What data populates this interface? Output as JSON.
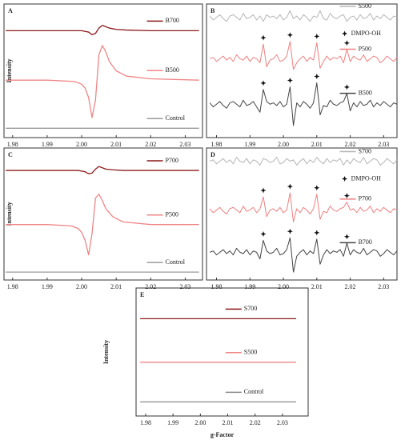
{
  "chart_data": [
    {
      "type": "line",
      "title": "A",
      "ylabel": "Intensity",
      "x": [
        1.978,
        1.99,
        1.998,
        2.0,
        2.001,
        2.002,
        2.003,
        2.004,
        2.005,
        2.006,
        2.007,
        2.008,
        2.01,
        2.013,
        2.02,
        2.034
      ],
      "series": [
        {
          "name": "B700",
          "color": "#8b1a1a",
          "values": [
            80,
            80,
            80,
            80,
            79.5,
            79,
            77,
            78,
            82,
            84,
            83,
            82,
            81,
            80.5,
            80,
            80
          ]
        },
        {
          "name": "B500",
          "color": "#ef8585",
          "values": [
            43,
            43,
            42,
            40,
            37,
            30,
            15,
            28,
            62,
            69,
            64,
            57,
            50,
            46,
            44,
            43
          ]
        },
        {
          "name": "Control",
          "color": "#9a9a9a",
          "values": [
            7,
            7,
            7,
            7,
            7,
            7,
            7,
            7,
            7,
            7,
            7,
            7,
            7,
            7,
            7,
            7
          ]
        }
      ],
      "xlim": [
        1.9775,
        2.035
      ],
      "ylim": [
        0,
        100
      ],
      "xticks": [
        1.98,
        1.99,
        {
          "value": 2,
          "label": "2.00"
        },
        2.01,
        2.02,
        2.03
      ]
    },
    {
      "type": "line",
      "title": "B",
      "annotation": "DMPO-OH",
      "x": [
        1.978,
        1.979,
        1.98,
        1.981,
        1.982,
        1.983,
        1.984,
        1.985,
        1.986,
        1.987,
        1.988,
        1.989,
        1.99,
        1.991,
        1.992,
        1.993,
        1.994,
        1.995,
        1.996,
        1.997,
        1.998,
        1.999,
        2.0,
        2.001,
        2.002,
        2.003,
        2.004,
        2.005,
        2.006,
        2.007,
        2.008,
        2.009,
        2.01,
        2.011,
        2.012,
        2.013,
        2.014,
        2.015,
        2.016,
        2.017,
        2.018,
        2.019,
        2.02,
        2.021,
        2.022,
        2.023,
        2.024,
        2.025,
        2.026,
        2.027,
        2.028,
        2.029,
        2.03,
        2.031,
        2.032,
        2.033,
        2.034
      ],
      "series": [
        {
          "name": "S500",
          "color": "#b5b5b5",
          "values": [
            91,
            88,
            90,
            92,
            89,
            87,
            91,
            92,
            90,
            88,
            93,
            89,
            90,
            92,
            88,
            91,
            87,
            92,
            90,
            91,
            89,
            92,
            88,
            90,
            95,
            89,
            91,
            88,
            92,
            90,
            87,
            91,
            90,
            95,
            89,
            88,
            93,
            90,
            89,
            91,
            92,
            87,
            90,
            91,
            88,
            92,
            89,
            90,
            93,
            88,
            91,
            89,
            92,
            90,
            88,
            91,
            90
          ]
        },
        {
          "name": "P500",
          "color": "#ef8080",
          "values": [
            59,
            60,
            57,
            59,
            61,
            58,
            60,
            57,
            62,
            59,
            58,
            61,
            57,
            60,
            59,
            56,
            70,
            53,
            58,
            59,
            62,
            57,
            58,
            61,
            72,
            51,
            56,
            59,
            61,
            57,
            60,
            58,
            71,
            52,
            57,
            61,
            58,
            60,
            59,
            61,
            56,
            66,
            57,
            61,
            59,
            58,
            62,
            57,
            59,
            61,
            60,
            56,
            58,
            61,
            59,
            57,
            60
          ]
        },
        {
          "name": "B500",
          "color": "#444444",
          "values": [
            26,
            23,
            25,
            27,
            24,
            22,
            26,
            27,
            25,
            23,
            28,
            24,
            25,
            27,
            23,
            19,
            36,
            27,
            25,
            26,
            24,
            27,
            23,
            25,
            38,
            9,
            26,
            23,
            27,
            25,
            22,
            26,
            41,
            17,
            24,
            23,
            28,
            25,
            24,
            26,
            27,
            33,
            20,
            26,
            23,
            27,
            24,
            25,
            28,
            23,
            26,
            24,
            27,
            25,
            23,
            26,
            25
          ]
        }
      ],
      "xlim": [
        1.977,
        2.034
      ],
      "ylim": [
        0,
        100
      ],
      "xticks": [
        1.98,
        1.99,
        {
          "value": 2,
          "label": "2.00"
        },
        2.01,
        2.02,
        2.03
      ]
    },
    {
      "type": "line",
      "title": "C",
      "ylabel": "Intensity",
      "x": [
        1.978,
        1.99,
        1.997,
        1.999,
        2.0,
        2.001,
        2.002,
        2.003,
        2.004,
        2.005,
        2.006,
        2.007,
        2.009,
        2.012,
        2.02,
        2.034
      ],
      "series": [
        {
          "name": "P700",
          "color": "#8b1a1a",
          "values": [
            83,
            83,
            83,
            83,
            82.5,
            82,
            80.5,
            81,
            84,
            86,
            85,
            84,
            83.5,
            83,
            83,
            83
          ]
        },
        {
          "name": "P500",
          "color": "#ef8585",
          "values": [
            42,
            42,
            41,
            39,
            36,
            30,
            19,
            35,
            62,
            65,
            60,
            54,
            48,
            44,
            42,
            42
          ]
        },
        {
          "name": "Control",
          "color": "#9a9a9a",
          "values": [
            6,
            6,
            6,
            6,
            6,
            6,
            6,
            6,
            6,
            6,
            6,
            6,
            6,
            6,
            6,
            6
          ]
        }
      ],
      "xlim": [
        1.9775,
        2.035
      ],
      "ylim": [
        0,
        100
      ],
      "xticks": [
        1.98,
        1.99,
        {
          "value": 2,
          "label": "2.00"
        },
        2.01,
        2.02,
        2.03
      ]
    },
    {
      "type": "line",
      "title": "D",
      "annotation": "DMPO-OH",
      "x": [
        1.978,
        1.979,
        1.98,
        1.981,
        1.982,
        1.983,
        1.984,
        1.985,
        1.986,
        1.987,
        1.988,
        1.989,
        1.99,
        1.991,
        1.992,
        1.993,
        1.994,
        1.995,
        1.996,
        1.997,
        1.998,
        1.999,
        2.0,
        2.001,
        2.002,
        2.003,
        2.004,
        2.005,
        2.006,
        2.007,
        2.008,
        2.009,
        2.01,
        2.011,
        2.012,
        2.013,
        2.014,
        2.015,
        2.016,
        2.017,
        2.018,
        2.019,
        2.02,
        2.021,
        2.022,
        2.023,
        2.024,
        2.025,
        2.026,
        2.027,
        2.028,
        2.029,
        2.03,
        2.031,
        2.032,
        2.033,
        2.034
      ],
      "series": [
        {
          "name": "S700",
          "color": "#b5b5b5",
          "values": [
            90,
            91,
            88,
            90,
            92,
            89,
            91,
            88,
            93,
            90,
            89,
            92,
            88,
            91,
            90,
            87,
            92,
            91,
            89,
            90,
            93,
            88,
            89,
            92,
            90,
            91,
            87,
            90,
            92,
            88,
            91,
            89,
            93,
            90,
            88,
            92,
            89,
            91,
            90,
            92,
            87,
            91,
            88,
            92,
            90,
            89,
            93,
            88,
            90,
            92,
            91,
            87,
            89,
            92,
            90,
            88,
            91
          ]
        },
        {
          "name": "P700",
          "color": "#ef8080",
          "values": [
            54,
            51,
            53,
            55,
            52,
            50,
            54,
            55,
            53,
            51,
            56,
            52,
            53,
            55,
            51,
            54,
            63,
            48,
            53,
            54,
            52,
            55,
            51,
            53,
            66,
            44,
            54,
            51,
            55,
            53,
            50,
            54,
            65,
            46,
            52,
            51,
            56,
            53,
            52,
            54,
            55,
            59,
            53,
            54,
            51,
            55,
            52,
            53,
            56,
            51,
            54,
            52,
            55,
            53,
            51,
            54,
            53
          ]
        },
        {
          "name": "B700",
          "color": "#444444",
          "values": [
            21,
            22,
            19,
            21,
            23,
            20,
            22,
            19,
            24,
            21,
            20,
            23,
            19,
            22,
            21,
            16,
            30,
            22,
            20,
            21,
            24,
            19,
            20,
            23,
            32,
            6,
            18,
            21,
            23,
            19,
            22,
            20,
            31,
            12,
            19,
            23,
            20,
            22,
            21,
            23,
            18,
            28,
            19,
            23,
            21,
            20,
            24,
            19,
            21,
            23,
            22,
            18,
            20,
            23,
            21,
            19,
            22
          ]
        }
      ],
      "xlim": [
        1.977,
        2.034
      ],
      "ylim": [
        0,
        100
      ],
      "xticks": [
        1.98,
        1.99,
        {
          "value": 2,
          "label": "2.00"
        },
        2.01,
        2.02,
        2.03
      ]
    },
    {
      "type": "line",
      "title": "E",
      "ylabel": "Intensity",
      "xlabel": "g-Factor",
      "x": [
        1.978,
        1.99,
        2.0,
        2.01,
        2.02,
        2.035
      ],
      "series": [
        {
          "name": "S700",
          "color": "#8b1a1a",
          "values": [
            76,
            76,
            76,
            76,
            76,
            76
          ]
        },
        {
          "name": "S500",
          "color": "#ef8585",
          "values": [
            42,
            42,
            42,
            42,
            42,
            42
          ]
        },
        {
          "name": "Control",
          "color": "#8a8a8a",
          "values": [
            11,
            11,
            11,
            11,
            11,
            11
          ]
        }
      ],
      "xlim": [
        1.9765,
        2.0394
      ],
      "ylim": [
        0,
        100
      ],
      "xticks": [
        1.98,
        1.99,
        {
          "value": 2,
          "label": "2.00"
        },
        2.01,
        2.02,
        2.03
      ]
    }
  ]
}
